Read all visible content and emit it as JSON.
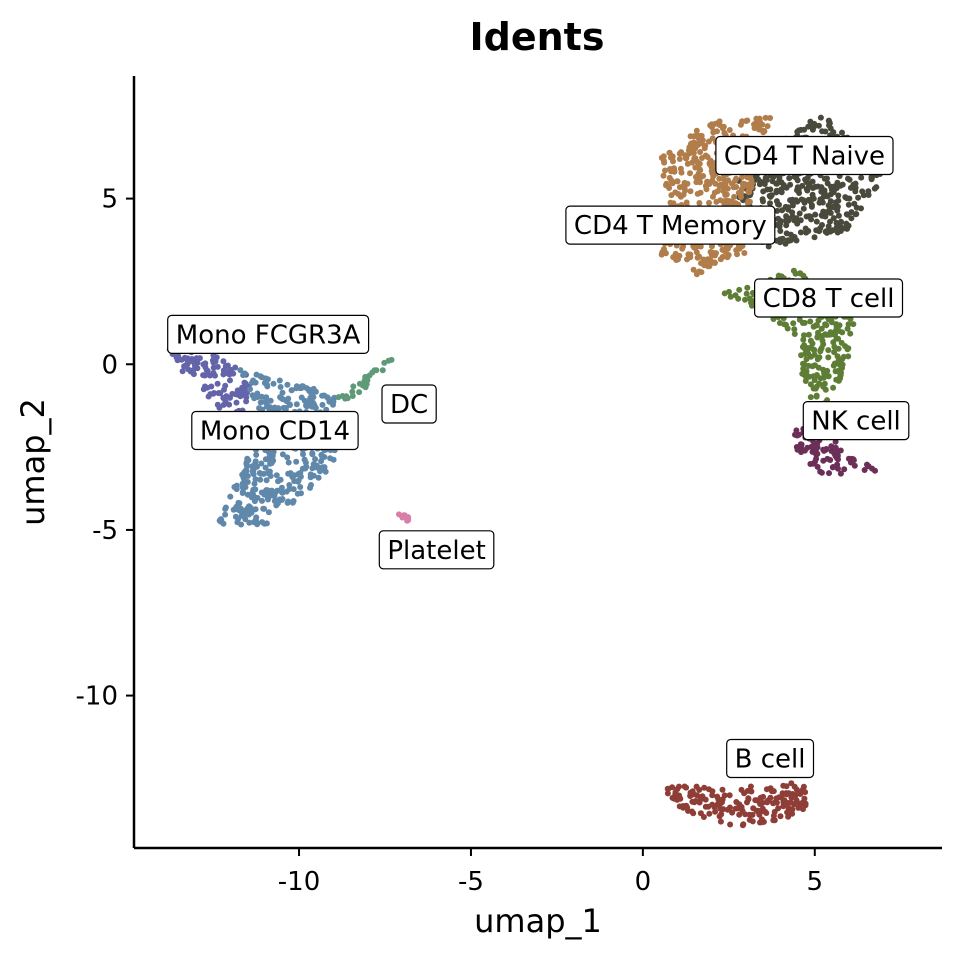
{
  "chart_data": {
    "type": "scatter",
    "title": "Idents",
    "xlabel": "umap_1",
    "ylabel": "umap_2",
    "xlim": [
      -14.8,
      8.7
    ],
    "ylim": [
      -14.6,
      8.7
    ],
    "x_ticks": [
      -10,
      -5,
      0,
      5
    ],
    "y_ticks": [
      5,
      0,
      -5,
      -10
    ],
    "x_tick_labels": [
      "-10",
      "-5",
      "0",
      "5"
    ],
    "y_tick_labels": [
      "5",
      "0",
      "-5",
      "-10"
    ],
    "grid": false,
    "legend": "none",
    "clusters": [
      {
        "name": "CD4 T Naive",
        "color": "#4a4a3c",
        "label_pos": [
          4.7,
          6.3
        ],
        "shape": [
          [
            2.8,
            5.9
          ],
          [
            5.2,
            7.6
          ],
          [
            7.1,
            5.8
          ],
          [
            5.9,
            4.0
          ],
          [
            3.6,
            3.5
          ],
          [
            2.6,
            4.6
          ]
        ]
      },
      {
        "name": "CD4 T Memory",
        "color": "#b07d4b",
        "label_pos": [
          0.8,
          4.2
        ],
        "shape": [
          [
            0.5,
            6.2
          ],
          [
            1.8,
            7.3
          ],
          [
            3.8,
            7.5
          ],
          [
            3.3,
            5.4
          ],
          [
            3.1,
            3.4
          ],
          [
            1.6,
            2.7
          ],
          [
            0.3,
            3.4
          ],
          [
            0.8,
            4.6
          ]
        ]
      },
      {
        "name": "CD8 T cell",
        "color": "#5e7d35",
        "label_pos": [
          5.4,
          2.0
        ],
        "shape": [
          [
            3.0,
            2.4
          ],
          [
            4.6,
            2.9
          ],
          [
            6.2,
            1.5
          ],
          [
            5.9,
            -0.2
          ],
          [
            5.3,
            -1.2
          ],
          [
            4.7,
            -0.9
          ],
          [
            4.5,
            0.8
          ],
          [
            3.5,
            1.6
          ],
          [
            2.2,
            2.1
          ]
        ]
      },
      {
        "name": "NK cell",
        "color": "#6b2f58",
        "label_pos": [
          6.2,
          -1.7
        ],
        "shape": [
          [
            4.4,
            -1.9
          ],
          [
            5.5,
            -1.8
          ],
          [
            5.8,
            -2.7
          ],
          [
            6.9,
            -3.2
          ],
          [
            5.3,
            -3.4
          ],
          [
            4.6,
            -2.8
          ],
          [
            4.3,
            -2.3
          ]
        ]
      },
      {
        "name": "Mono FCGR3A",
        "color": "#6464aa",
        "label_pos": [
          -10.9,
          0.9
        ],
        "shape": [
          [
            -13.9,
            0.6
          ],
          [
            -12.2,
            0.2
          ],
          [
            -11.4,
            -0.4
          ],
          [
            -11.6,
            -1.5
          ],
          [
            -12.5,
            -1.3
          ],
          [
            -13.4,
            -0.2
          ]
        ]
      },
      {
        "name": "Mono CD14",
        "color": "#6088aa",
        "label_pos": [
          -10.7,
          -2.0
        ],
        "shape": [
          [
            -11.8,
            -0.1
          ],
          [
            -10.8,
            -0.4
          ],
          [
            -9.0,
            -0.9
          ],
          [
            -8.6,
            -2.2
          ],
          [
            -9.4,
            -3.6
          ],
          [
            -11.0,
            -4.9
          ],
          [
            -12.4,
            -4.8
          ],
          [
            -11.7,
            -3.2
          ],
          [
            -11.0,
            -1.8
          ]
        ]
      },
      {
        "name": "DC",
        "color": "#5e9a78",
        "label_pos": [
          -6.8,
          -1.2
        ],
        "shape": [
          [
            -8.9,
            -1.0
          ],
          [
            -7.3,
            0.3
          ],
          [
            -7.1,
            0.1
          ],
          [
            -8.5,
            -1.1
          ]
        ]
      },
      {
        "name": "Platelet",
        "color": "#d87fa8",
        "label_pos": [
          -6.0,
          -5.6
        ],
        "shape": [
          [
            -7.2,
            -4.5
          ],
          [
            -6.8,
            -4.55
          ],
          [
            -6.8,
            -4.75
          ],
          [
            -7.2,
            -4.65
          ]
        ]
      },
      {
        "name": "B cell",
        "color": "#8e3e36",
        "label_pos": [
          3.7,
          -11.9
        ],
        "shape": [
          [
            0.4,
            -12.6
          ],
          [
            2.3,
            -12.8
          ],
          [
            4.7,
            -12.6
          ],
          [
            4.9,
            -13.5
          ],
          [
            2.9,
            -14.0
          ],
          [
            1.2,
            -13.5
          ]
        ]
      }
    ]
  }
}
